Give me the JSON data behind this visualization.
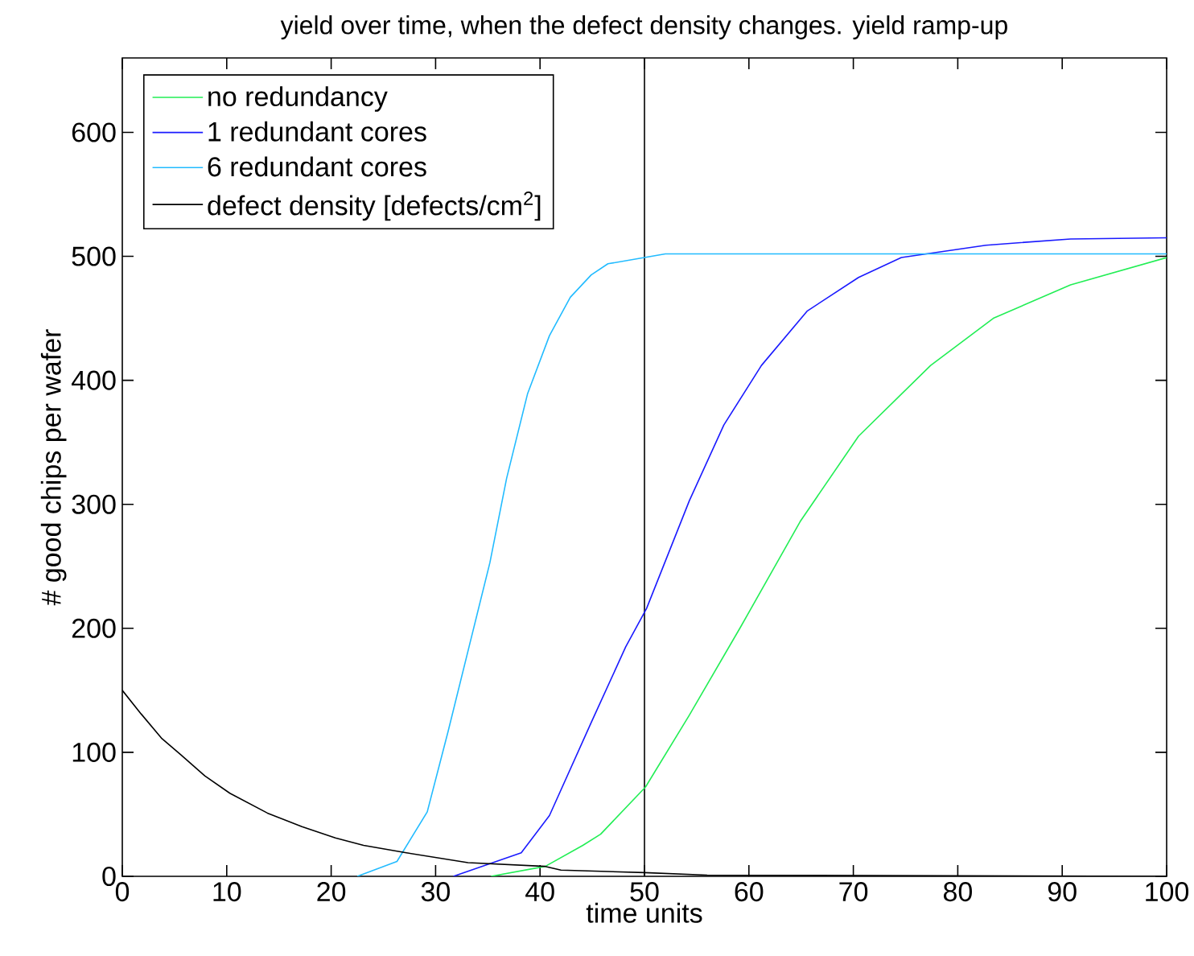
{
  "chart_data": {
    "type": "line",
    "title": "yield over time, when the defect density changes. yield ramp-up",
    "xlabel": "time units",
    "ylabel": "# good chips per wafer",
    "xlim": [
      0,
      100
    ],
    "ylim": [
      0,
      660
    ],
    "xticks": [
      0,
      10,
      20,
      30,
      40,
      50,
      60,
      70,
      80,
      90,
      100
    ],
    "yticks": [
      0,
      100,
      200,
      300,
      400,
      500,
      600
    ],
    "legend": "top left",
    "grid": false,
    "marker": "none",
    "line_style": "solid",
    "ref_lines": [
      {
        "axis": "x",
        "value": 50,
        "color": "#000000"
      }
    ],
    "series": [
      {
        "name": "no redundancy",
        "color": "#22ee55",
        "x": [
          35.3,
          40.5,
          44.1,
          45.8,
          50.1,
          54.3,
          59.2,
          64.9,
          70.5,
          77.4,
          83.4,
          90.8,
          100
        ],
        "values": [
          0,
          8,
          25,
          34,
          72,
          130,
          201,
          286,
          355,
          412,
          450,
          477,
          499
        ]
      },
      {
        "name": "1 redundant cores",
        "color": "#1a1aff",
        "x": [
          31.7,
          38.2,
          40.9,
          44.9,
          48.2,
          50.2,
          54.3,
          57.6,
          61.2,
          65.6,
          70.5,
          74.6,
          82.7,
          90.8,
          100
        ],
        "values": [
          0,
          19,
          49,
          124,
          185,
          216,
          303,
          364,
          412,
          456,
          483,
          499,
          509,
          514,
          515
        ]
      },
      {
        "name": "6 redundant cores",
        "color": "#22bbff",
        "x": [
          22.5,
          26.3,
          29.2,
          31.2,
          33.2,
          35.2,
          36.8,
          38.8,
          40.9,
          42.9,
          44.9,
          46.5,
          50,
          52,
          100
        ],
        "values": [
          0,
          12,
          52,
          117,
          185,
          253,
          321,
          389,
          436,
          467,
          485,
          494,
          499,
          502,
          502
        ]
      },
      {
        "name": "defect density [defects/cm$^{2}$]",
        "color": "#000000",
        "x": [
          0,
          1.8,
          3.8,
          5.6,
          7.9,
          10.3,
          13.9,
          17.2,
          20.4,
          23.1,
          27.2,
          33.1,
          40.5,
          42,
          50,
          56,
          100
        ],
        "values": [
          150,
          131,
          111,
          98,
          81,
          67,
          51,
          40,
          31,
          25,
          19,
          11,
          8,
          5,
          3,
          1,
          0
        ]
      }
    ]
  }
}
